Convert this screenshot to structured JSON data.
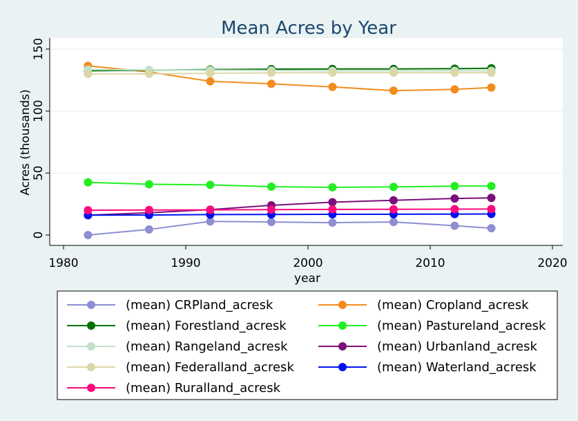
{
  "chart_data": {
    "type": "line",
    "title": "Mean Acres by Year",
    "xlabel": "year",
    "ylabel": "Acres (thousands)",
    "xlim": [
      1980,
      2020
    ],
    "ylim": [
      0,
      150
    ],
    "xticks": [
      "1980",
      "1990",
      "2000",
      "2010",
      "2020"
    ],
    "yticks": [
      "0",
      "50",
      "100",
      "150"
    ],
    "grid": "horizontal",
    "legend_position": "bottom",
    "x": [
      1982,
      1987,
      1992,
      1997,
      2002,
      2007,
      2012,
      2015
    ],
    "series": [
      {
        "name": "(mean) CRPland_acresk",
        "color": "#8d8fd1",
        "values": [
          0,
          4.5,
          11,
          10.5,
          10,
          10.5,
          7.5,
          5.5
        ]
      },
      {
        "name": "(mean) Cropland_acresk",
        "color": "#f28c1e",
        "values": [
          136.5,
          131.5,
          124,
          122,
          119.5,
          116.5,
          117.5,
          119
        ]
      },
      {
        "name": "(mean) Forestland_acresk",
        "color": "#007000",
        "values": [
          132.5,
          133,
          133.5,
          133.8,
          134,
          134,
          134.2,
          134.5
        ]
      },
      {
        "name": "(mean) Pastureland_acresk",
        "color": "#22ee22",
        "values": [
          42.5,
          41,
          40.5,
          39,
          38.5,
          38.8,
          39.5,
          39.5
        ]
      },
      {
        "name": "(mean) Rangeland_acresk",
        "color": "#c0e0c8",
        "values": [
          133.5,
          133.2,
          133,
          132.8,
          132.5,
          132.5,
          132.5,
          132.5
        ]
      },
      {
        "name": "(mean) Urbanland_acresk",
        "color": "#7b0f7b",
        "values": [
          16,
          18,
          20.5,
          24,
          26.5,
          28,
          29.5,
          30
        ]
      },
      {
        "name": "(mean) Federalland_acresk",
        "color": "#dbd7a8",
        "values": [
          130,
          130,
          130.5,
          130.8,
          131,
          131,
          131,
          131
        ]
      },
      {
        "name": "(mean) Waterland_acresk",
        "color": "#0010f0",
        "values": [
          16,
          16.2,
          16.5,
          16.6,
          16.7,
          16.8,
          16.9,
          17
        ]
      },
      {
        "name": "(mean) Ruralland_acresk",
        "color": "#ff0a7c",
        "values": [
          20,
          20.2,
          20.3,
          20.5,
          20.7,
          20.8,
          20.9,
          21
        ]
      }
    ]
  }
}
